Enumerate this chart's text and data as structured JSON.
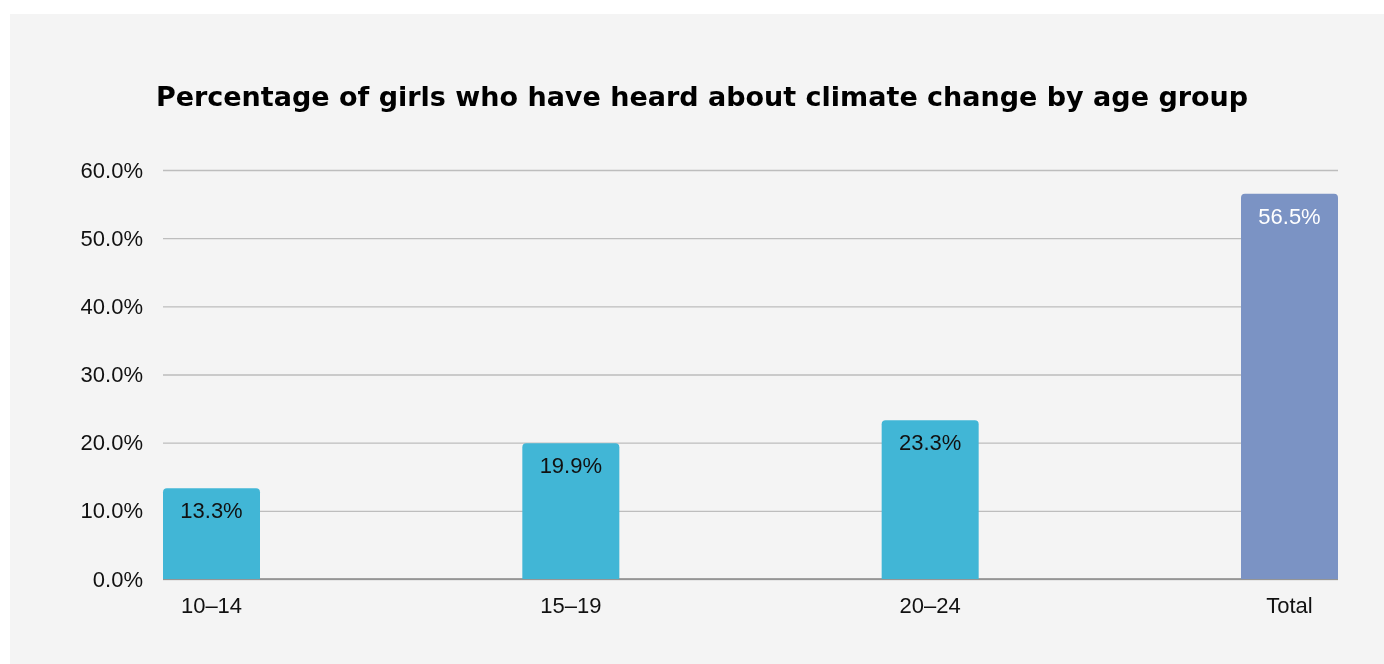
{
  "chart_data": {
    "type": "bar",
    "title": "Percentage of girls who have heard about climate change by age group",
    "categories": [
      "10–14",
      "15–19",
      "20–24",
      "Total"
    ],
    "values": [
      13.3,
      19.9,
      23.3,
      56.5
    ],
    "colors": [
      "#41b6d6",
      "#41b6d6",
      "#41b6d6",
      "#7b93c4"
    ],
    "value_labels": [
      "13.3%",
      "19.9%",
      "23.3%",
      "56.5%"
    ],
    "ylim": [
      0,
      60
    ],
    "yticks": [
      {
        "value": 0,
        "label": "0.0%"
      },
      {
        "value": 10,
        "label": "10.0%"
      },
      {
        "value": 20,
        "label": "20.0%"
      },
      {
        "value": 30,
        "label": "30.0%"
      },
      {
        "value": 40,
        "label": "40.0%"
      },
      {
        "value": 50,
        "label": "50.0%"
      },
      {
        "value": 60,
        "label": "60.0%"
      }
    ],
    "grid": "y"
  }
}
